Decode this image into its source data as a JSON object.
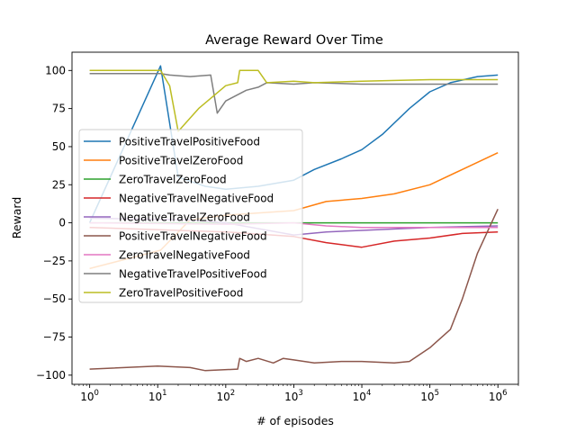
{
  "chart_data": {
    "type": "line",
    "title": "Average Reward Over Time",
    "xlabel": "# of episodes",
    "ylabel": "Reward",
    "xscale": "log",
    "xlim": [
      0.55,
      2000000
    ],
    "ylim": [
      -106,
      112
    ],
    "grid": false,
    "legend_position": "center-left",
    "xticks": [
      {
        "value": 1,
        "base": "10",
        "exp": "0"
      },
      {
        "value": 10,
        "base": "10",
        "exp": "1"
      },
      {
        "value": 100,
        "base": "10",
        "exp": "2"
      },
      {
        "value": 1000,
        "base": "10",
        "exp": "3"
      },
      {
        "value": 10000,
        "base": "10",
        "exp": "4"
      },
      {
        "value": 100000,
        "base": "10",
        "exp": "5"
      },
      {
        "value": 1000000,
        "base": "10",
        "exp": "6"
      }
    ],
    "yticks": [
      100,
      75,
      50,
      25,
      0,
      -25,
      -50,
      -75,
      -100
    ],
    "yticklabels": [
      "100",
      "75",
      "50",
      "25",
      "0",
      "−25",
      "−50",
      "−75",
      "−100"
    ],
    "series": [
      {
        "name": "PositiveTravelPositiveFood",
        "color": "#1f77b4",
        "points": [
          [
            1,
            0
          ],
          [
            11,
            103
          ],
          [
            20,
            30
          ],
          [
            50,
            24
          ],
          [
            100,
            22
          ],
          [
            300,
            24
          ],
          [
            1000,
            28
          ],
          [
            2000,
            35
          ],
          [
            5000,
            42
          ],
          [
            10000,
            48
          ],
          [
            20000,
            58
          ],
          [
            50000,
            75
          ],
          [
            100000,
            86
          ],
          [
            200000,
            92
          ],
          [
            500000,
            96
          ],
          [
            1000000,
            97
          ]
        ]
      },
      {
        "name": "PositiveTravelZeroFood",
        "color": "#ff7f0e",
        "points": [
          [
            1,
            -30
          ],
          [
            11,
            -18
          ],
          [
            30,
            2
          ],
          [
            100,
            5
          ],
          [
            1000,
            8
          ],
          [
            3000,
            14
          ],
          [
            10000,
            16
          ],
          [
            30000,
            19
          ],
          [
            100000,
            25
          ],
          [
            300000,
            35
          ],
          [
            1000000,
            46
          ]
        ]
      },
      {
        "name": "ZeroTravelZeroFood",
        "color": "#2ca02c",
        "points": [
          [
            1,
            0
          ],
          [
            1000000,
            0
          ]
        ]
      },
      {
        "name": "NegativeTravelNegativeFood",
        "color": "#d62728",
        "points": [
          [
            1,
            -3
          ],
          [
            100,
            -6
          ],
          [
            1000,
            -9
          ],
          [
            3000,
            -13
          ],
          [
            10000,
            -16
          ],
          [
            30000,
            -12
          ],
          [
            100000,
            -10
          ],
          [
            300000,
            -7
          ],
          [
            1000000,
            -6
          ]
        ]
      },
      {
        "name": "NegativeTravelZeroFood",
        "color": "#9467bd",
        "points": [
          [
            1,
            3
          ],
          [
            30,
            2
          ],
          [
            100,
            0
          ],
          [
            1000,
            -8
          ],
          [
            3000,
            -6
          ],
          [
            10000,
            -5
          ],
          [
            100000,
            -3
          ],
          [
            1000000,
            -2
          ]
        ]
      },
      {
        "name": "PositiveTravelNegativeFood",
        "color": "#8c564b",
        "points": [
          [
            1,
            -96
          ],
          [
            10,
            -94
          ],
          [
            30,
            -95
          ],
          [
            50,
            -97
          ],
          [
            150,
            -96
          ],
          [
            160,
            -89
          ],
          [
            200,
            -91
          ],
          [
            300,
            -89
          ],
          [
            500,
            -92
          ],
          [
            700,
            -89
          ],
          [
            1000,
            -90
          ],
          [
            2000,
            -92
          ],
          [
            5000,
            -91
          ],
          [
            10000,
            -91
          ],
          [
            30000,
            -92
          ],
          [
            50000,
            -91
          ],
          [
            100000,
            -82
          ],
          [
            200000,
            -70
          ],
          [
            300000,
            -50
          ],
          [
            500000,
            -20
          ],
          [
            1000000,
            9
          ]
        ]
      },
      {
        "name": "ZeroTravelNegativeFood",
        "color": "#e377c2",
        "points": [
          [
            1,
            0
          ],
          [
            100,
            -1
          ],
          [
            1000,
            0
          ],
          [
            3000,
            -2
          ],
          [
            10000,
            -3
          ],
          [
            100000,
            -3
          ],
          [
            1000000,
            -3
          ]
        ]
      },
      {
        "name": "NegativeTravelPositiveFood",
        "color": "#7f7f7f",
        "points": [
          [
            1,
            98
          ],
          [
            11,
            98
          ],
          [
            15,
            97
          ],
          [
            30,
            96
          ],
          [
            60,
            97
          ],
          [
            70,
            80
          ],
          [
            75,
            72
          ],
          [
            100,
            80
          ],
          [
            200,
            87
          ],
          [
            300,
            89
          ],
          [
            400,
            92
          ],
          [
            1000,
            91
          ],
          [
            2000,
            92
          ],
          [
            10000,
            91
          ],
          [
            100000,
            91
          ],
          [
            1000000,
            91
          ]
        ]
      },
      {
        "name": "ZeroTravelPositiveFood",
        "color": "#bcbd22",
        "points": [
          [
            1,
            100
          ],
          [
            11,
            100
          ],
          [
            15,
            90
          ],
          [
            20,
            60
          ],
          [
            40,
            75
          ],
          [
            100,
            90
          ],
          [
            150,
            92
          ],
          [
            160,
            100
          ],
          [
            300,
            100
          ],
          [
            400,
            92
          ],
          [
            1000,
            93
          ],
          [
            2000,
            92
          ],
          [
            10000,
            93
          ],
          [
            100000,
            94
          ],
          [
            1000000,
            94
          ]
        ]
      }
    ]
  }
}
